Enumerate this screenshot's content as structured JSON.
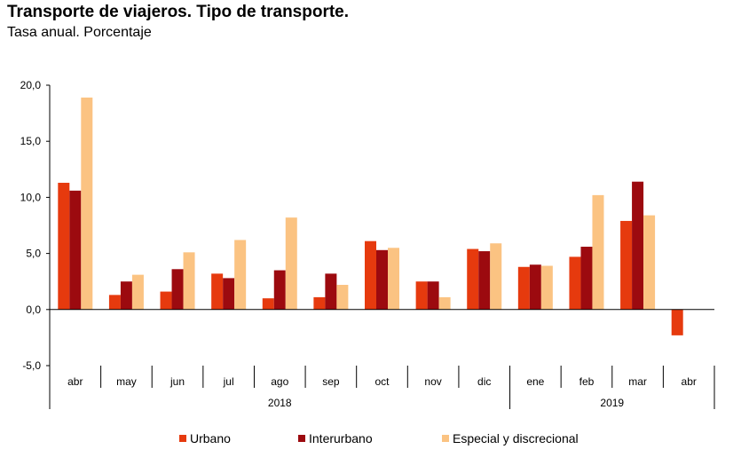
{
  "title": "Transporte de viajeros. Tipo de transporte.",
  "subtitle": "Tasa anual. Porcentaje",
  "chart_data": {
    "type": "bar",
    "categories": [
      "abr",
      "may",
      "jun",
      "jul",
      "ago",
      "sep",
      "oct",
      "nov",
      "dic",
      "ene",
      "feb",
      "mar",
      "abr"
    ],
    "groups": [
      {
        "label": "2018",
        "from": 0,
        "to": 8
      },
      {
        "label": "2019",
        "from": 9,
        "to": 12
      }
    ],
    "y_ticks": [
      "20,0",
      "15,0",
      "10,0",
      "5,0",
      "0,0",
      "-5,0"
    ],
    "ylim": [
      -5,
      20
    ],
    "series": [
      {
        "name": "Urbano",
        "color": "#e63a0e",
        "values": [
          11.3,
          1.3,
          1.6,
          3.2,
          1.0,
          1.1,
          6.1,
          2.5,
          5.4,
          3.8,
          4.7,
          7.9,
          -2.3
        ]
      },
      {
        "name": "Interurbano",
        "color": "#9c0a0f",
        "values": [
          10.6,
          2.5,
          3.6,
          2.8,
          3.5,
          3.2,
          5.3,
          2.5,
          5.2,
          4.0,
          5.6,
          11.4,
          0.0
        ]
      },
      {
        "name": "Especial y discrecional",
        "color": "#fbc382",
        "values": [
          18.9,
          3.1,
          5.1,
          6.2,
          8.2,
          2.2,
          5.5,
          1.1,
          5.9,
          3.9,
          10.2,
          8.4,
          0.0
        ]
      }
    ]
  }
}
